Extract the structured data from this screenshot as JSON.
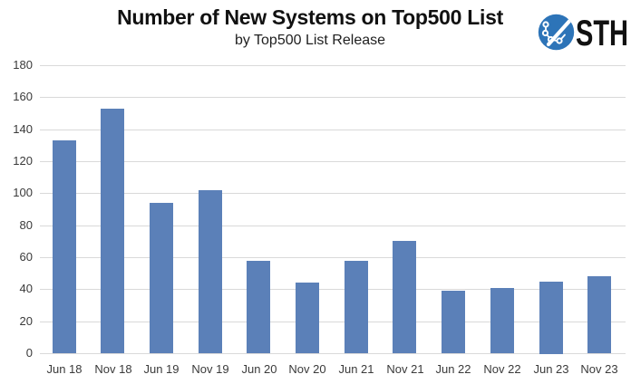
{
  "header": {
    "title": "Number of New Systems on Top500 List",
    "subtitle": "by Top500 List Release",
    "logo_text": "STH"
  },
  "chart_data": {
    "type": "bar",
    "title": "Number of New Systems on Top500 List",
    "subtitle": "by Top500 List Release",
    "categories": [
      "Jun 18",
      "Nov 18",
      "Jun 19",
      "Nov 19",
      "Jun 20",
      "Nov 20",
      "Jun 21",
      "Nov 21",
      "Jun 22",
      "Nov 22",
      "Jun 23",
      "Nov 23"
    ],
    "values": [
      133,
      153,
      94,
      102,
      58,
      44,
      58,
      70,
      39,
      41,
      45,
      48
    ],
    "xlabel": "",
    "ylabel": "",
    "ylim": [
      0,
      180
    ],
    "yticks": [
      0,
      20,
      40,
      60,
      80,
      100,
      120,
      140,
      160,
      180
    ],
    "grid": "horizontal",
    "legend": "none",
    "colors": {
      "bar": "#5b80b8",
      "gridline": "#d9d9d9",
      "axis_text": "#3a3a3a",
      "logo_blue": "#2d74b8",
      "logo_text": "#111111"
    }
  }
}
